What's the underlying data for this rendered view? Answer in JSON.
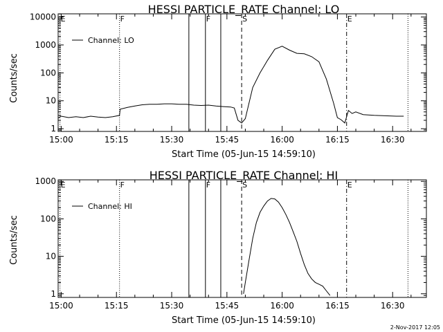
{
  "footer_timestamp": "2-Nov-2017 12:05",
  "chart_data": [
    {
      "type": "line",
      "title": "HESSI PARTICLE_RATE Channel: LO",
      "xlabel": "Start Time (05-Jun-15 14:59:10)",
      "ylabel": "Counts/sec",
      "yscale": "log",
      "xlim": [
        "14:59:10",
        "16:39:10"
      ],
      "ylim": [
        0.8,
        13000
      ],
      "x_ticks": [
        "15:00",
        "15:15",
        "15:30",
        "15:45",
        "16:00",
        "16:15",
        "16:30"
      ],
      "y_ticks": [
        "1",
        "10",
        "100",
        "1000",
        "10000"
      ],
      "legend": {
        "label": "Channel: LO",
        "placement": "top-left"
      },
      "markers": [
        {
          "time": "14:59:40",
          "label": "E",
          "style": "dotted"
        },
        {
          "time": "15:15:50",
          "label": "F",
          "style": "dotted"
        },
        {
          "time": "15:34:40",
          "label": "",
          "style": "solid"
        },
        {
          "time": "15:39:10",
          "label": "F",
          "style": "solid"
        },
        {
          "time": "15:43:20",
          "label": "",
          "style": "solid"
        },
        {
          "time": "15:49:00",
          "label": "S",
          "style": "dashed"
        },
        {
          "time": "16:17:30",
          "label": "E",
          "style": "dashdot"
        },
        {
          "time": "16:34:10",
          "label": "",
          "style": "dotted"
        }
      ],
      "series": [
        {
          "name": "Channel: LO",
          "x": [
            "14:59:10",
            "15:00",
            "15:02",
            "15:04",
            "15:06",
            "15:08",
            "15:10",
            "15:12",
            "15:14",
            "15:15:50",
            "15:16",
            "15:18",
            "15:20",
            "15:22",
            "15:24",
            "15:26",
            "15:28",
            "15:30",
            "15:32",
            "15:34",
            "15:36",
            "15:38",
            "15:40",
            "15:42",
            "15:44",
            "15:46",
            "15:47",
            "15:48",
            "15:49",
            "15:50",
            "15:52",
            "15:54",
            "15:56",
            "15:58",
            "16:00",
            "16:02",
            "16:04",
            "16:06",
            "16:08",
            "16:10",
            "16:12",
            "16:14",
            "16:15",
            "16:16",
            "16:17",
            "16:18",
            "16:19",
            "16:20",
            "16:22",
            "16:25",
            "16:28",
            "16:31",
            "16:33"
          ],
          "y": [
            2.4,
            2.8,
            2.5,
            2.7,
            2.5,
            2.8,
            2.6,
            2.5,
            2.7,
            3.0,
            5.0,
            5.8,
            6.5,
            7.2,
            7.5,
            7.5,
            7.8,
            7.8,
            7.5,
            7.5,
            7.0,
            6.8,
            7.0,
            6.5,
            6.2,
            6.0,
            5.5,
            2.0,
            1.6,
            2.3,
            30,
            100,
            280,
            700,
            900,
            650,
            500,
            480,
            380,
            250,
            60,
            8,
            2.5,
            2.1,
            1.6,
            4.5,
            3.5,
            4.0,
            3.2,
            3.0,
            2.9,
            2.8,
            2.8
          ]
        }
      ]
    },
    {
      "type": "line",
      "title": "HESSI PARTICLE_RATE Channel: HI",
      "xlabel": "Start Time (05-Jun-15 14:59:10)",
      "ylabel": "Counts/sec",
      "yscale": "log",
      "xlim": [
        "14:59:10",
        "16:39:10"
      ],
      "ylim": [
        0.8,
        1100
      ],
      "x_ticks": [
        "15:00",
        "15:15",
        "15:30",
        "15:45",
        "16:00",
        "16:15",
        "16:30"
      ],
      "y_ticks": [
        "1",
        "10",
        "100",
        "1000"
      ],
      "legend": {
        "label": "Channel: HI",
        "placement": "top-left"
      },
      "markers": [
        {
          "time": "14:59:40",
          "label": "E",
          "style": "dotted"
        },
        {
          "time": "15:15:50",
          "label": "F",
          "style": "dotted"
        },
        {
          "time": "15:34:40",
          "label": "",
          "style": "solid"
        },
        {
          "time": "15:39:10",
          "label": "F",
          "style": "solid"
        },
        {
          "time": "15:43:20",
          "label": "",
          "style": "solid"
        },
        {
          "time": "15:49:00",
          "label": "S",
          "style": "dashed"
        },
        {
          "time": "16:17:30",
          "label": "E",
          "style": "dashdot"
        },
        {
          "time": "16:34:10",
          "label": "",
          "style": "dotted"
        }
      ],
      "series": [
        {
          "name": "Channel: HI",
          "x": [
            "15:49:30",
            "15:50",
            "15:51",
            "15:52",
            "15:53",
            "15:54",
            "15:55",
            "15:56",
            "15:57",
            "15:58",
            "15:59",
            "16:00",
            "16:01",
            "16:02",
            "16:03",
            "16:04",
            "16:05",
            "16:06",
            "16:07",
            "16:08",
            "16:09",
            "16:10",
            "16:11",
            "16:12",
            "16:13"
          ],
          "y": [
            1.0,
            2.0,
            8,
            30,
            80,
            150,
            220,
            300,
            350,
            340,
            280,
            200,
            130,
            80,
            45,
            25,
            12,
            6,
            3.5,
            2.5,
            2.0,
            1.8,
            1.6,
            1.2,
            0.9
          ]
        }
      ]
    }
  ]
}
